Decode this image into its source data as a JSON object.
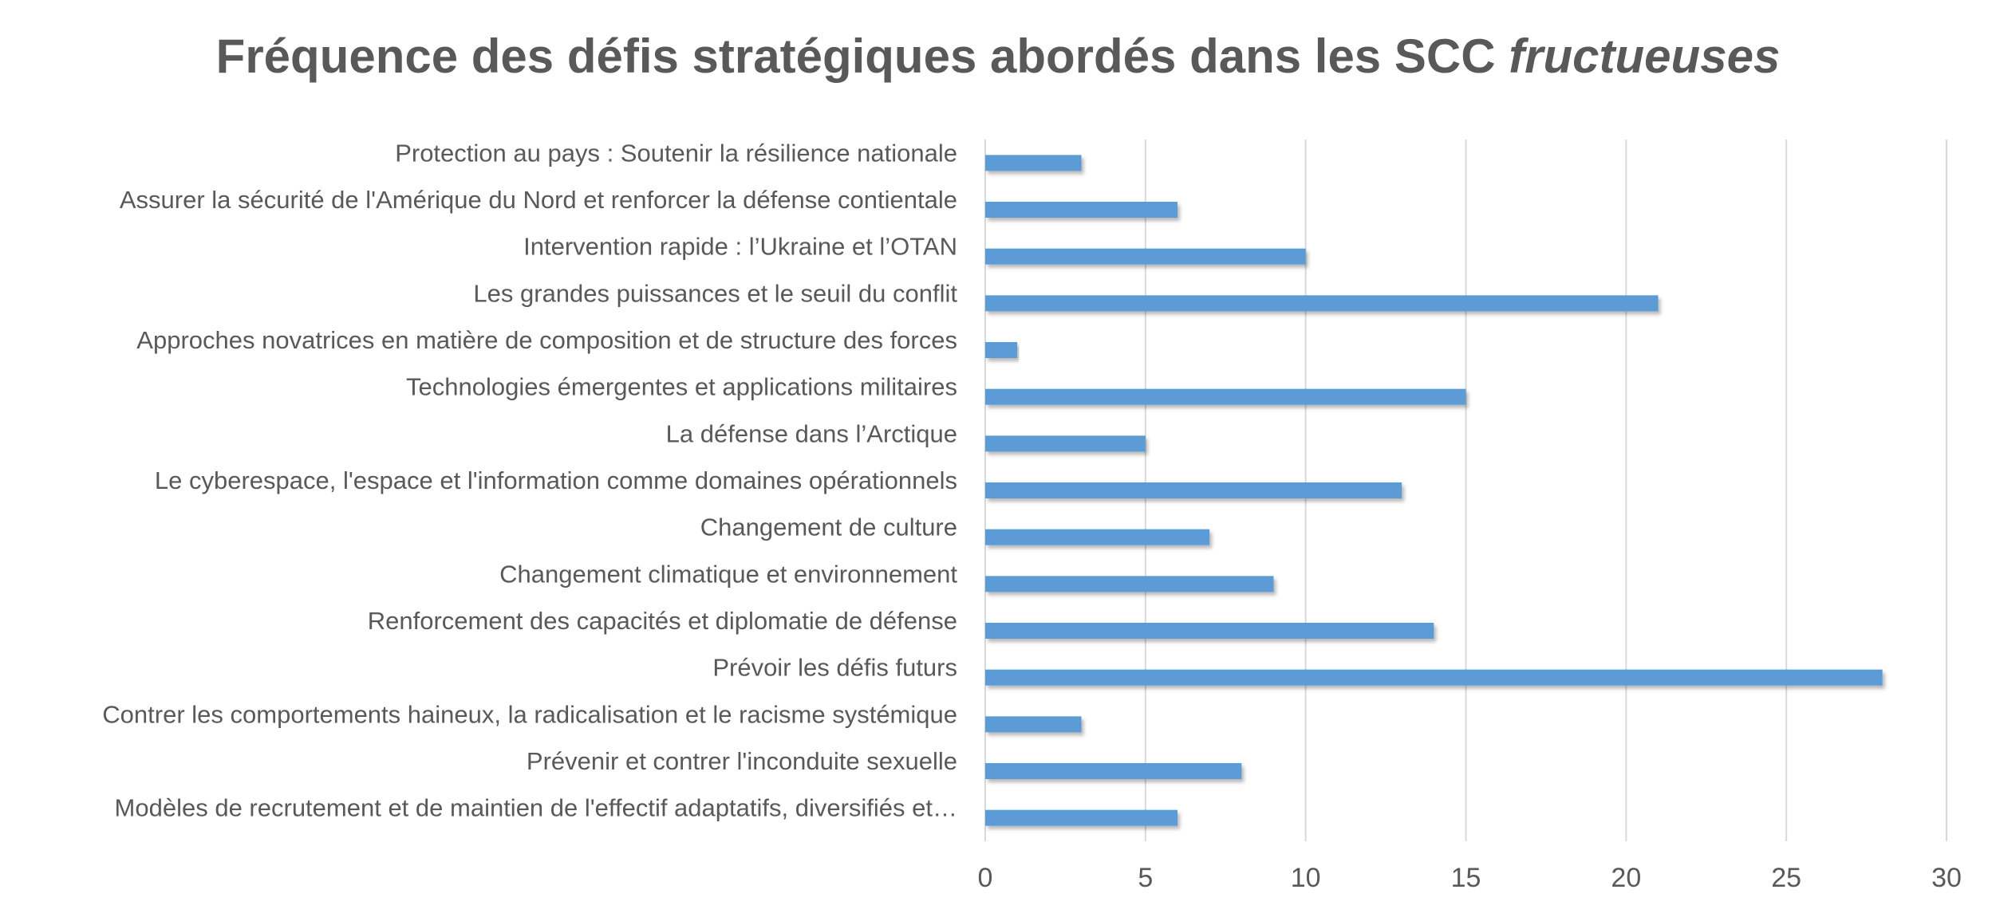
{
  "chart_data": {
    "type": "bar",
    "orientation": "horizontal",
    "title": "Fréquence des défis stratégiques abordés dans les SCC",
    "title_emphasis": "fructueuses",
    "xlabel": "",
    "ylabel": "",
    "xlim": [
      0,
      30
    ],
    "xticks": [
      0,
      5,
      10,
      15,
      20,
      25,
      30
    ],
    "grid": "vertical",
    "legend": "none",
    "bar_color": "#5b9bd5",
    "categories": [
      "Protection au pays : Soutenir la résilience nationale",
      "Assurer la sécurité de l'Amérique du Nord et renforcer la défense contientale",
      "Intervention rapide : l’Ukraine et l’OTAN",
      "Les grandes puissances et le seuil du conflit",
      "Approches novatrices en matière de composition et de structure des forces",
      "Technologies émergentes et applications militaires",
      "La défense dans l’Arctique",
      "Le cyberespace, l'espace et l'information comme domaines opérationnels",
      "Changement de culture",
      "Changement climatique et environnement",
      "Renforcement des capacités et diplomatie de défense",
      "Prévoir les défis futurs",
      "Contrer les comportements haineux, la radicalisation et le racisme systémique",
      "Prévenir et contrer l'inconduite sexuelle",
      "Modèles de recrutement et de maintien de l'effectif adaptatifs, diversifiés et…"
    ],
    "values": [
      3,
      6,
      10,
      21,
      1,
      15,
      5,
      13,
      7,
      9,
      14,
      28,
      3,
      8,
      6
    ]
  }
}
